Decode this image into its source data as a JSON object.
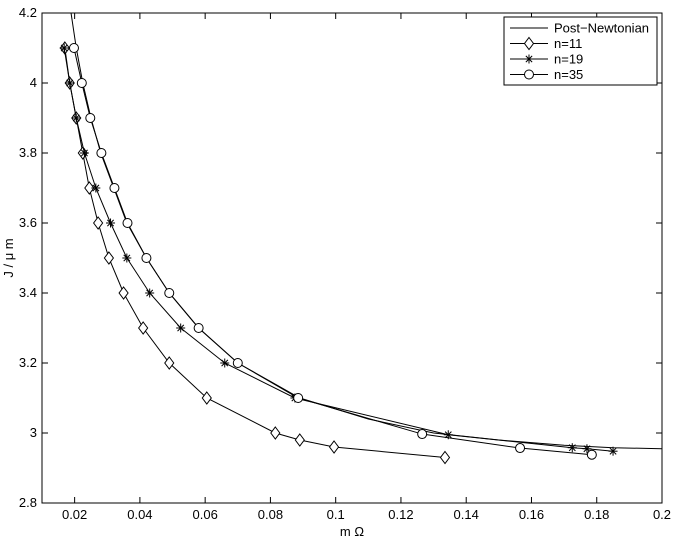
{
  "chart_data": {
    "type": "line",
    "xlabel": "m Ω",
    "ylabel": "J / μ m",
    "xlim": [
      0.01,
      0.2
    ],
    "ylim": [
      2.8,
      4.2
    ],
    "x_ticks": [
      0.02,
      0.04,
      0.06,
      0.08,
      0.1,
      0.12,
      0.14,
      0.16,
      0.18,
      0.2
    ],
    "x_tick_labels": [
      "0.02",
      "0.04",
      "0.06",
      "0.08",
      "0.1",
      "0.12",
      "0.14",
      "0.16",
      "0.18",
      "0.2"
    ],
    "y_ticks": [
      2.8,
      3.0,
      3.2,
      3.4,
      3.6,
      3.8,
      4.0,
      4.2
    ],
    "y_tick_labels": [
      "2.8",
      "3",
      "3.2",
      "3.4",
      "3.6",
      "3.8",
      "4",
      "4.2"
    ],
    "grid": false,
    "legend_position": "top-right",
    "series": [
      {
        "name": "Post−Newtonian",
        "marker": "none",
        "x": [
          0.0189,
          0.0205,
          0.0225,
          0.025,
          0.028,
          0.032,
          0.036,
          0.042,
          0.049,
          0.058,
          0.07,
          0.089,
          0.11,
          0.13,
          0.15,
          0.17,
          0.185,
          0.2
        ],
        "y": [
          4.2,
          4.1,
          4.0,
          3.9,
          3.8,
          3.7,
          3.6,
          3.5,
          3.4,
          3.3,
          3.2,
          3.1,
          3.04,
          3.0,
          2.98,
          2.965,
          2.958,
          2.955
        ]
      },
      {
        "name": "n=11",
        "marker": "diamond",
        "x": [
          0.017,
          0.0185,
          0.0205,
          0.0225,
          0.0245,
          0.0272,
          0.0305,
          0.035,
          0.041,
          0.049,
          0.0605,
          0.0815,
          0.089,
          0.0995,
          0.1335
        ],
        "y": [
          4.1,
          4.0,
          3.9,
          3.8,
          3.7,
          3.6,
          3.5,
          3.4,
          3.3,
          3.2,
          3.1,
          3.0,
          2.98,
          2.96,
          2.93
        ]
      },
      {
        "name": "n=19",
        "marker": "star",
        "x": [
          0.0168,
          0.0185,
          0.0205,
          0.023,
          0.0265,
          0.031,
          0.036,
          0.043,
          0.0525,
          0.066,
          0.0875,
          0.1345,
          0.1725,
          0.177,
          0.185
        ],
        "y": [
          4.1,
          4.0,
          3.9,
          3.8,
          3.7,
          3.6,
          3.5,
          3.4,
          3.3,
          3.2,
          3.1,
          2.995,
          2.958,
          2.955,
          2.948
        ]
      },
      {
        "name": "n=35",
        "marker": "circle",
        "x": [
          0.0198,
          0.0222,
          0.0248,
          0.0282,
          0.0322,
          0.0362,
          0.042,
          0.049,
          0.058,
          0.07,
          0.0885,
          0.1265,
          0.1565,
          0.1785
        ],
        "y": [
          4.1,
          4.0,
          3.9,
          3.8,
          3.7,
          3.6,
          3.5,
          3.4,
          3.3,
          3.2,
          3.1,
          2.997,
          2.957,
          2.938
        ]
      }
    ]
  }
}
